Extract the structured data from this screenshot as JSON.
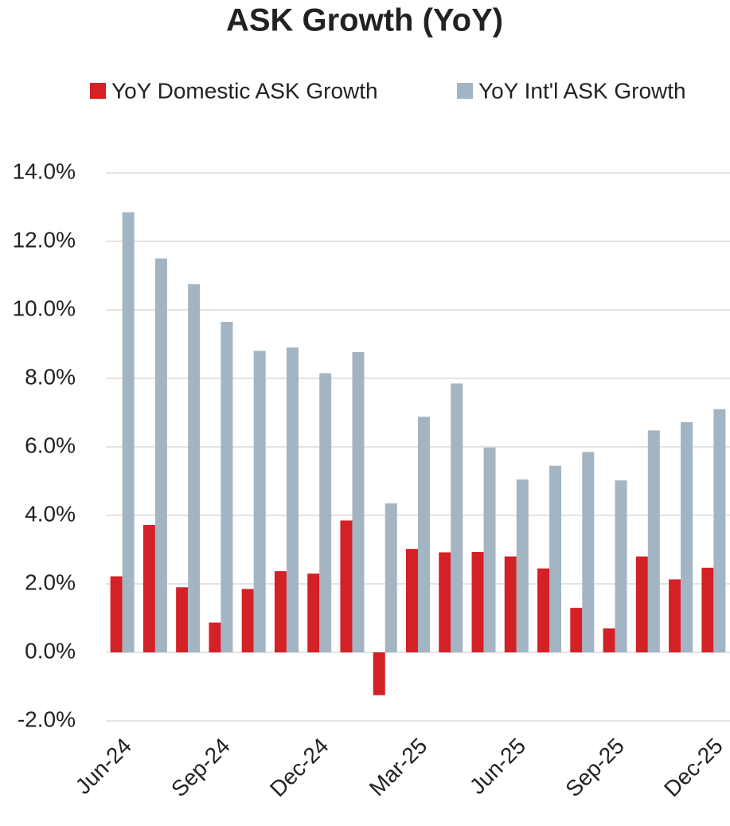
{
  "chart_data": {
    "type": "bar",
    "title": "ASK Growth (YoY)",
    "categories": [
      "Jun-24",
      null,
      null,
      "Sep-24",
      null,
      null,
      "Dec-24",
      null,
      null,
      "Mar-25",
      null,
      null,
      "Jun-25",
      null,
      null,
      "Sep-25",
      null,
      null,
      "Dec-25"
    ],
    "series": [
      {
        "name": "YoY Domestic ASK Growth",
        "color": "#d42027",
        "values": [
          2.22,
          3.72,
          1.9,
          0.87,
          1.85,
          2.37,
          2.3,
          3.85,
          -1.25,
          3.02,
          2.92,
          2.93,
          2.8,
          2.45,
          1.3,
          0.7,
          2.8,
          2.13,
          2.47
        ]
      },
      {
        "name": "YoY Int'l  ASK Growth",
        "color": "#a3b5c3",
        "values": [
          12.85,
          11.5,
          10.75,
          9.65,
          8.8,
          8.9,
          8.15,
          8.77,
          4.35,
          6.88,
          7.85,
          5.98,
          5.05,
          5.45,
          5.85,
          5.02,
          6.48,
          6.72,
          7.1
        ]
      }
    ],
    "ylim": [
      -2,
      14
    ],
    "yticks": [
      {
        "value": -2,
        "label": "-2.0%"
      },
      {
        "value": 0,
        "label": "0.0%"
      },
      {
        "value": 2,
        "label": "2.0%"
      },
      {
        "value": 4,
        "label": "4.0%"
      },
      {
        "value": 6,
        "label": "6.0%"
      },
      {
        "value": 8,
        "label": "8.0%"
      },
      {
        "value": 10,
        "label": "10.0%"
      },
      {
        "value": 12,
        "label": "12.0%"
      },
      {
        "value": 14,
        "label": "14.0%"
      }
    ],
    "grid": true
  }
}
